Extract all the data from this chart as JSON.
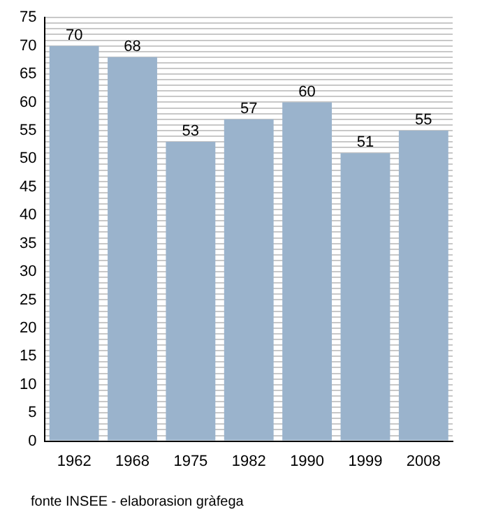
{
  "chart_data": {
    "type": "bar",
    "categories": [
      "1962",
      "1968",
      "1975",
      "1982",
      "1990",
      "1999",
      "2008"
    ],
    "values": [
      70,
      68,
      53,
      57,
      60,
      51,
      55
    ],
    "color": "#9ab3cc",
    "data_labels": true,
    "ylim": [
      0,
      75
    ],
    "yticks": [
      0,
      {
        "value": 1,
        "label": null
      },
      {
        "value": 2,
        "label": null
      },
      {
        "value": 3,
        "label": null
      },
      {
        "value": 4,
        "label": null
      },
      5,
      {
        "value": 6,
        "label": null
      },
      {
        "value": 7,
        "label": null
      },
      {
        "value": 8,
        "label": null
      },
      {
        "value": 9,
        "label": null
      },
      10,
      {
        "value": 11,
        "label": null
      },
      {
        "value": 12,
        "label": null
      },
      {
        "value": 13,
        "label": null
      },
      {
        "value": 14,
        "label": null
      },
      15,
      {
        "value": 16,
        "label": null
      },
      {
        "value": 17,
        "label": null
      },
      {
        "value": 18,
        "label": null
      },
      {
        "value": 19,
        "label": null
      },
      20,
      {
        "value": 21,
        "label": null
      },
      {
        "value": 22,
        "label": null
      },
      {
        "value": 23,
        "label": null
      },
      {
        "value": 24,
        "label": null
      },
      25,
      {
        "value": 26,
        "label": null
      },
      {
        "value": 27,
        "label": null
      },
      {
        "value": 28,
        "label": null
      },
      {
        "value": 29,
        "label": null
      },
      30,
      {
        "value": 31,
        "label": null
      },
      {
        "value": 32,
        "label": null
      },
      {
        "value": 33,
        "label": null
      },
      {
        "value": 34,
        "label": null
      },
      35,
      {
        "value": 36,
        "label": null
      },
      {
        "value": 37,
        "label": null
      },
      {
        "value": 38,
        "label": null
      },
      {
        "value": 39,
        "label": null
      },
      40,
      {
        "value": 41,
        "label": null
      },
      {
        "value": 42,
        "label": null
      },
      {
        "value": 43,
        "label": null
      },
      {
        "value": 44,
        "label": null
      },
      45,
      {
        "value": 46,
        "label": null
      },
      {
        "value": 47,
        "label": null
      },
      {
        "value": 48,
        "label": null
      },
      {
        "value": 49,
        "label": null
      },
      50,
      {
        "value": 51,
        "label": null
      },
      {
        "value": 52,
        "label": null
      },
      {
        "value": 53,
        "label": null
      },
      {
        "value": 54,
        "label": null
      },
      55,
      {
        "value": 56,
        "label": null
      },
      {
        "value": 57,
        "label": null
      },
      {
        "value": 58,
        "label": null
      },
      {
        "value": 59,
        "label": null
      },
      60,
      {
        "value": 61,
        "label": null
      },
      {
        "value": 62,
        "label": null
      },
      {
        "value": 63,
        "label": null
      },
      {
        "value": 64,
        "label": null
      },
      65,
      {
        "value": 66,
        "label": null
      },
      {
        "value": 67,
        "label": null
      },
      {
        "value": 68,
        "label": null
      },
      {
        "value": 69,
        "label": null
      },
      70,
      {
        "value": 71,
        "label": null
      },
      {
        "value": 72,
        "label": null
      },
      {
        "value": 73,
        "label": null
      },
      {
        "value": 74,
        "label": null
      },
      75
    ],
    "grid": "y",
    "annotations": [
      "fonte INSEE - elaborasion gràfega"
    ]
  }
}
